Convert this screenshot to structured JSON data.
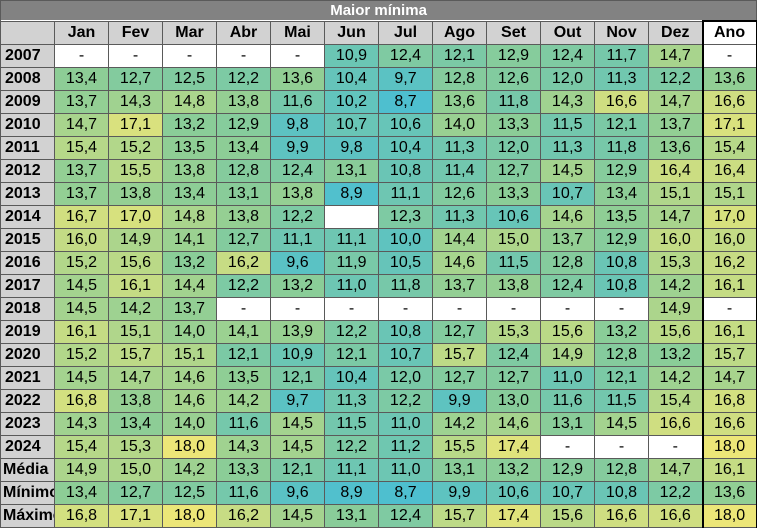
{
  "title": "Maior mínima",
  "columns": [
    "Jan",
    "Fev",
    "Mar",
    "Abr",
    "Mai",
    "Jun",
    "Jul",
    "Ago",
    "Set",
    "Out",
    "Nov",
    "Dez",
    "Ano"
  ],
  "rows": [
    {
      "label": "2007",
      "values": [
        "-",
        "-",
        "-",
        "-",
        "-",
        "10,9",
        "12,4",
        "12,1",
        "12,9",
        "12,4",
        "11,7",
        "14,7",
        "-"
      ]
    },
    {
      "label": "2008",
      "values": [
        "13,4",
        "12,7",
        "12,5",
        "12,2",
        "13,6",
        "10,4",
        "9,7",
        "12,8",
        "12,6",
        "12,0",
        "11,3",
        "12,2",
        "13,6"
      ]
    },
    {
      "label": "2009",
      "values": [
        "13,7",
        "14,3",
        "14,8",
        "13,8",
        "11,6",
        "10,2",
        "8,7",
        "13,6",
        "11,8",
        "14,3",
        "16,6",
        "14,7",
        "16,6"
      ]
    },
    {
      "label": "2010",
      "values": [
        "14,7",
        "17,1",
        "13,2",
        "12,9",
        "9,8",
        "10,7",
        "10,6",
        "14,0",
        "13,3",
        "11,5",
        "12,1",
        "13,7",
        "17,1"
      ]
    },
    {
      "label": "2011",
      "values": [
        "15,4",
        "15,2",
        "13,5",
        "13,4",
        "9,9",
        "9,8",
        "10,4",
        "11,3",
        "12,0",
        "11,3",
        "11,8",
        "13,6",
        "15,4"
      ]
    },
    {
      "label": "2012",
      "values": [
        "13,7",
        "15,5",
        "13,8",
        "12,8",
        "12,4",
        "13,1",
        "10,8",
        "11,4",
        "12,7",
        "14,5",
        "12,9",
        "16,4",
        "16,4"
      ]
    },
    {
      "label": "2013",
      "values": [
        "13,7",
        "13,8",
        "13,4",
        "13,1",
        "13,8",
        "8,9",
        "11,1",
        "12,6",
        "13,3",
        "10,7",
        "13,4",
        "15,1",
        "15,1"
      ]
    },
    {
      "label": "2014",
      "values": [
        "16,7",
        "17,0",
        "14,8",
        "13,8",
        "12,2",
        "",
        "12,3",
        "11,3",
        "10,6",
        "14,6",
        "13,5",
        "14,7",
        "17,0"
      ]
    },
    {
      "label": "2015",
      "values": [
        "16,0",
        "14,9",
        "14,1",
        "12,7",
        "11,1",
        "11,1",
        "10,0",
        "14,4",
        "15,0",
        "13,7",
        "12,9",
        "16,0",
        "16,0"
      ]
    },
    {
      "label": "2016",
      "values": [
        "15,2",
        "15,6",
        "13,2",
        "16,2",
        "9,6",
        "11,9",
        "10,5",
        "14,6",
        "11,5",
        "12,8",
        "10,8",
        "15,3",
        "16,2"
      ]
    },
    {
      "label": "2017",
      "values": [
        "14,5",
        "16,1",
        "14,4",
        "12,2",
        "13,2",
        "11,0",
        "11,8",
        "13,7",
        "13,8",
        "12,4",
        "10,8",
        "14,2",
        "16,1"
      ]
    },
    {
      "label": "2018",
      "values": [
        "14,5",
        "14,2",
        "13,7",
        "-",
        "-",
        "-",
        "-",
        "-",
        "-",
        "-",
        "-",
        "14,9",
        "-"
      ]
    },
    {
      "label": "2019",
      "values": [
        "16,1",
        "15,1",
        "14,0",
        "14,1",
        "13,9",
        "12,2",
        "10,8",
        "12,7",
        "15,3",
        "15,6",
        "13,2",
        "15,6",
        "16,1"
      ]
    },
    {
      "label": "2020",
      "values": [
        "15,2",
        "15,7",
        "15,1",
        "12,1",
        "10,9",
        "12,1",
        "10,7",
        "15,7",
        "12,4",
        "14,9",
        "12,8",
        "13,2",
        "15,7"
      ]
    },
    {
      "label": "2021",
      "values": [
        "14,5",
        "14,7",
        "14,6",
        "13,5",
        "12,1",
        "10,4",
        "12,0",
        "12,7",
        "12,7",
        "11,0",
        "12,1",
        "14,2",
        "14,7"
      ]
    },
    {
      "label": "2022",
      "values": [
        "16,8",
        "13,8",
        "14,6",
        "14,2",
        "9,7",
        "11,3",
        "12,2",
        "9,9",
        "13,0",
        "11,6",
        "11,5",
        "15,4",
        "16,8"
      ]
    },
    {
      "label": "2023",
      "values": [
        "14,3",
        "13,4",
        "14,0",
        "11,6",
        "14,5",
        "11,5",
        "11,0",
        "14,2",
        "14,6",
        "13,1",
        "14,5",
        "16,6",
        "16,6"
      ]
    },
    {
      "label": "2024",
      "values": [
        "15,4",
        "15,3",
        "18,0",
        "14,3",
        "14,5",
        "12,2",
        "11,2",
        "15,5",
        "17,4",
        "-",
        "-",
        "-",
        "18,0"
      ]
    }
  ],
  "stats": [
    {
      "label": "Média",
      "values": [
        "14,9",
        "15,0",
        "14,2",
        "13,3",
        "12,1",
        "11,1",
        "11,0",
        "13,1",
        "13,2",
        "12,9",
        "12,8",
        "14,7",
        "16,1"
      ]
    },
    {
      "label": "Mínimo",
      "values": [
        "13,4",
        "12,7",
        "12,5",
        "11,6",
        "9,6",
        "8,9",
        "8,7",
        "9,9",
        "10,6",
        "10,7",
        "10,8",
        "12,2",
        "13,6"
      ]
    },
    {
      "label": "Máximo",
      "values": [
        "16,8",
        "17,1",
        "18,0",
        "16,2",
        "14,5",
        "13,1",
        "12,4",
        "15,7",
        "17,4",
        "15,6",
        "16,6",
        "16,6",
        "18,0"
      ]
    }
  ]
}
